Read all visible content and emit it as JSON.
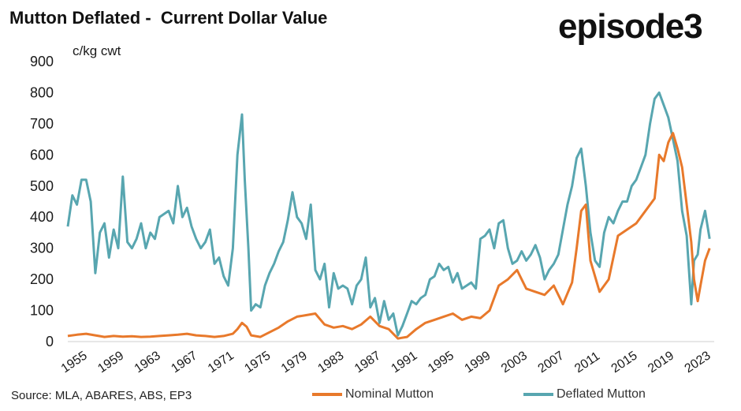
{
  "title": "Mutton Deflated -  Current Dollar Value",
  "logo_text": "episode3",
  "source": "Source: MLA, ABARES, ABS, EP3",
  "chart_data": {
    "type": "line",
    "ylabel": "c/kg cwt",
    "ylim": [
      0,
      900
    ],
    "yticks": [
      "0",
      "100",
      "200",
      "300",
      "400",
      "500",
      "600",
      "700",
      "800",
      "900"
    ],
    "xlim": [
      1955,
      2025.5
    ],
    "xticks": [
      "1955",
      "1959",
      "1963",
      "1967",
      "1971",
      "1975",
      "1979",
      "1983",
      "1987",
      "1991",
      "1995",
      "1999",
      "2003",
      "2007",
      "2011",
      "2015",
      "2019",
      "2023"
    ],
    "grid": false,
    "legend_position": "bottom",
    "colors": {
      "nominal": "#E8792B",
      "deflated": "#58A6B0"
    },
    "series": [
      {
        "name": "Nominal Mutton",
        "x": [
          1955,
          1956,
          1957,
          1958,
          1959,
          1960,
          1961,
          1962,
          1963,
          1964,
          1965,
          1966,
          1967,
          1968,
          1969,
          1970,
          1971,
          1972,
          1973,
          1973.5,
          1974,
          1974.5,
          1975,
          1976,
          1977,
          1978,
          1979,
          1980,
          1981,
          1982,
          1983,
          1984,
          1985,
          1986,
          1987,
          1988,
          1989,
          1990,
          1991,
          1992,
          1993,
          1994,
          1995,
          1996,
          1997,
          1998,
          1999,
          2000,
          2001,
          2002,
          2003,
          2004,
          2005,
          2006,
          2007,
          2008,
          2009,
          2010,
          2010.5,
          2011,
          2011.5,
          2012,
          2013,
          2014,
          2015,
          2016,
          2017,
          2018,
          2019,
          2019.5,
          2020,
          2020.5,
          2021,
          2021.5,
          2022,
          2022.5,
          2023,
          2023.3,
          2023.7,
          2024,
          2024.5,
          2025
        ],
        "values": [
          18,
          22,
          25,
          20,
          15,
          18,
          16,
          17,
          15,
          16,
          18,
          20,
          22,
          25,
          20,
          18,
          15,
          18,
          25,
          40,
          60,
          48,
          20,
          15,
          30,
          45,
          65,
          80,
          85,
          90,
          55,
          45,
          50,
          40,
          55,
          80,
          50,
          40,
          10,
          15,
          40,
          60,
          70,
          80,
          90,
          70,
          80,
          75,
          100,
          180,
          200,
          230,
          170,
          160,
          150,
          180,
          120,
          190,
          300,
          420,
          440,
          260,
          160,
          200,
          340,
          360,
          380,
          420,
          460,
          600,
          580,
          640,
          670,
          620,
          560,
          440,
          320,
          200,
          130,
          180,
          260,
          300
        ]
      },
      {
        "name": "Deflated Mutton",
        "x": [
          1955,
          1955.5,
          1956,
          1956.5,
          1957,
          1957.5,
          1958,
          1958.5,
          1959,
          1959.5,
          1960,
          1960.5,
          1961,
          1961.5,
          1962,
          1962.5,
          1963,
          1963.5,
          1964,
          1964.5,
          1965,
          1966,
          1966.5,
          1967,
          1967.5,
          1968,
          1968.5,
          1969,
          1969.5,
          1970,
          1970.5,
          1971,
          1971.5,
          1972,
          1972.5,
          1973,
          1973.5,
          1974,
          1974.3,
          1974.7,
          1975,
          1975.5,
          1976,
          1976.5,
          1977,
          1977.5,
          1978,
          1978.5,
          1979,
          1979.5,
          1980,
          1980.5,
          1981,
          1981.5,
          1982,
          1982.5,
          1983,
          1983.5,
          1984,
          1984.5,
          1985,
          1985.5,
          1986,
          1986.5,
          1987,
          1987.5,
          1988,
          1988.5,
          1989,
          1989.5,
          1990,
          1990.5,
          1991,
          1991.5,
          1992,
          1992.5,
          1993,
          1993.5,
          1994,
          1994.5,
          1995,
          1995.5,
          1996,
          1996.5,
          1997,
          1997.5,
          1998,
          1998.5,
          1999,
          1999.5,
          2000,
          2000.5,
          2001,
          2001.5,
          2002,
          2002.5,
          2003,
          2003.5,
          2004,
          2004.5,
          2005,
          2005.5,
          2006,
          2006.5,
          2007,
          2007.5,
          2008,
          2008.5,
          2009,
          2009.5,
          2010,
          2010.5,
          2011,
          2011.5,
          2012,
          2012.5,
          2013,
          2013.5,
          2014,
          2014.5,
          2015,
          2015.5,
          2016,
          2016.5,
          2017,
          2017.5,
          2018,
          2018.5,
          2019,
          2019.5,
          2020,
          2020.5,
          2021,
          2021.5,
          2022,
          2022.5,
          2023,
          2023.3,
          2023.7,
          2024,
          2024.5,
          2025
        ],
        "values": [
          370,
          470,
          440,
          520,
          520,
          450,
          220,
          350,
          380,
          270,
          360,
          300,
          530,
          320,
          300,
          330,
          380,
          300,
          350,
          330,
          400,
          420,
          380,
          500,
          400,
          430,
          370,
          330,
          300,
          320,
          360,
          250,
          270,
          210,
          180,
          300,
          600,
          730,
          520,
          300,
          100,
          120,
          110,
          180,
          220,
          250,
          290,
          320,
          390,
          480,
          400,
          380,
          330,
          440,
          230,
          200,
          250,
          110,
          220,
          170,
          180,
          170,
          120,
          180,
          200,
          270,
          110,
          140,
          60,
          130,
          70,
          90,
          20,
          50,
          90,
          130,
          120,
          140,
          150,
          200,
          210,
          250,
          230,
          240,
          190,
          220,
          170,
          180,
          190,
          170,
          330,
          340,
          360,
          300,
          380,
          390,
          300,
          250,
          260,
          290,
          260,
          280,
          310,
          270,
          200,
          230,
          250,
          280,
          360,
          440,
          500,
          590,
          620,
          500,
          350,
          260,
          240,
          350,
          400,
          380,
          420,
          450,
          450,
          500,
          520,
          560,
          600,
          700,
          780,
          800,
          760,
          720,
          650,
          580,
          420,
          340,
          120,
          260,
          280,
          360,
          420,
          330
        ]
      }
    ]
  }
}
